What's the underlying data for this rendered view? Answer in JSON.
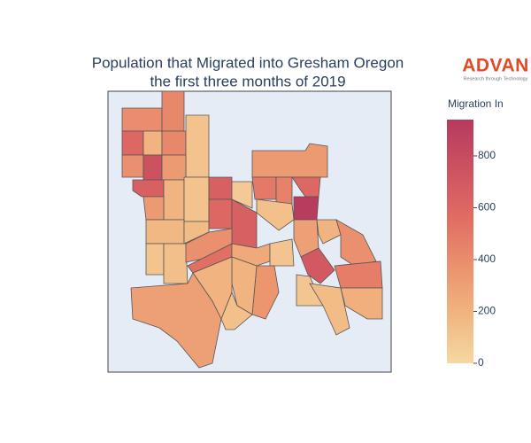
{
  "title": [
    "Population that Migrated into Gresham Oregon",
    "the first three months of 2019"
  ],
  "brand": {
    "name": "ADVAN",
    "tagline": "Research through Technology"
  },
  "colorbar": {
    "title": "Migration In",
    "range": [
      0,
      940
    ],
    "ticks": [
      0,
      200,
      400,
      600,
      800
    ],
    "colorscale": [
      "#f6d8a4",
      "#f1b580",
      "#eb916e",
      "#e06c63",
      "#cc5261",
      "#b53a5e"
    ]
  },
  "map": {
    "background": "#e5ecf6",
    "values": [
      400,
      420,
      600,
      200,
      420,
      120,
      380,
      750,
      330,
      650,
      200,
      330,
      120,
      650,
      600,
      80,
      650,
      330,
      500,
      450,
      600,
      920,
      130,
      170,
      150,
      110,
      140,
      380,
      550,
      250,
      300,
      200,
      380,
      700,
      480,
      220,
      100,
      150,
      110,
      350,
      200,
      200,
      300,
      130
    ]
  }
}
